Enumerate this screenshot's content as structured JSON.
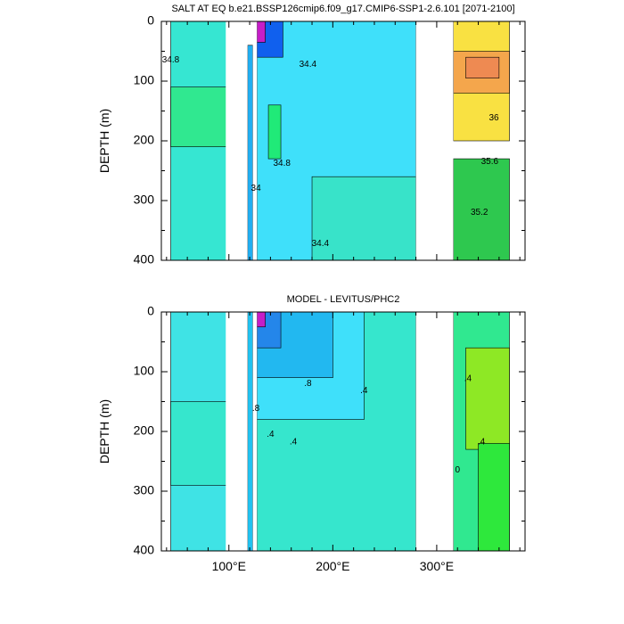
{
  "chart_data": [
    {
      "type": "heatmap",
      "subtype": "filled-contour",
      "title": "SALT AT EQ b.e21.BSSP126cmip6.f09_g17.CMIP6-SSP1-2.6.101 [2071-2100]",
      "ylabel": "DEPTH (m)",
      "xlim": [
        35,
        385
      ],
      "ylim": [
        400,
        0
      ],
      "y_reversed": true,
      "xticks": [
        100,
        200,
        300
      ],
      "xticklabels": [
        "100°E",
        "200°E",
        "300°E"
      ],
      "yticks": [
        0,
        100,
        200,
        300,
        400
      ],
      "yticklabels": [
        "0",
        "100",
        "200",
        "300",
        "400"
      ],
      "land_gaps_lon": [
        [
          97,
          118
        ],
        [
          123,
          127
        ],
        [
          280,
          316
        ]
      ],
      "contour_labels": [
        {
          "text": "34.8",
          "lon": 44,
          "depth": 65
        },
        {
          "text": "34.4",
          "lon": 176,
          "depth": 72
        },
        {
          "text": "34.8",
          "lon": 151,
          "depth": 238
        },
        {
          "text": "34",
          "lon": 126,
          "depth": 280
        },
        {
          "text": "34.4",
          "lon": 188,
          "depth": 372
        },
        {
          "text": "36",
          "lon": 355,
          "depth": 162
        },
        {
          "text": "35.6",
          "lon": 351,
          "depth": 235
        },
        {
          "text": "35.2",
          "lon": 341,
          "depth": 320
        }
      ],
      "regions": [
        {
          "value": 34.6,
          "color": "#36e6d2",
          "lon": [
            44,
            98
          ],
          "depth": [
            0,
            400
          ]
        },
        {
          "value": 34.9,
          "color": "#30e890",
          "lon": [
            44,
            98
          ],
          "depth": [
            110,
            210
          ]
        },
        {
          "value": 34.0,
          "color": "#22aef0",
          "lon": [
            118,
            123
          ],
          "depth": [
            40,
            400
          ]
        },
        {
          "value": 34.2,
          "color": "#3fe0fa",
          "lon": [
            127,
            280
          ],
          "depth": [
            0,
            400
          ]
        },
        {
          "value": 33.6,
          "color": "#1060ee",
          "lon": [
            127,
            152
          ],
          "depth": [
            0,
            60
          ]
        },
        {
          "value": 33.0,
          "color": "#c51ec8",
          "lon": [
            127,
            135
          ],
          "depth": [
            0,
            35
          ]
        },
        {
          "value": 34.8,
          "color": "#20ea78",
          "lon": [
            138,
            150
          ],
          "depth": [
            140,
            230
          ]
        },
        {
          "value": 34.6,
          "color": "#38e3c9",
          "lon": [
            180,
            280
          ],
          "depth": [
            260,
            400
          ]
        },
        {
          "value": 35.4,
          "color": "#2ec84f",
          "lon": [
            316,
            370
          ],
          "depth": [
            230,
            400
          ]
        },
        {
          "value": 35.8,
          "color": "#f9e142",
          "lon": [
            316,
            370
          ],
          "depth": [
            0,
            200
          ]
        },
        {
          "value": 36.2,
          "color": "#f4a64c",
          "lon": [
            316,
            370
          ],
          "depth": [
            50,
            120
          ]
        },
        {
          "value": 36.6,
          "color": "#ee8a52",
          "lon": [
            328,
            360
          ],
          "depth": [
            60,
            95
          ]
        }
      ]
    },
    {
      "type": "heatmap",
      "subtype": "filled-contour",
      "title": "MODEL - LEVITUS/PHC2",
      "ylabel": "DEPTH (m)",
      "xlim": [
        35,
        385
      ],
      "ylim": [
        400,
        0
      ],
      "y_reversed": true,
      "xticks": [
        100,
        200,
        300
      ],
      "xticklabels": [
        "100°E",
        "200°E",
        "300°E"
      ],
      "yticks": [
        0,
        100,
        200,
        300,
        400
      ],
      "yticklabels": [
        "0",
        "100",
        "200",
        "300",
        "400"
      ],
      "land_gaps_lon": [
        [
          97,
          118
        ],
        [
          123,
          127
        ],
        [
          280,
          316
        ]
      ],
      "contour_labels": [
        {
          "text": ".8",
          "lon": 176,
          "depth": 120
        },
        {
          "text": ".4",
          "lon": 230,
          "depth": 132
        },
        {
          "text": ".8",
          "lon": 126,
          "depth": 162
        },
        {
          "text": ".4",
          "lon": 140,
          "depth": 205
        },
        {
          "text": ".4",
          "lon": 162,
          "depth": 218
        },
        {
          "text": ".4",
          "lon": 330,
          "depth": 112
        },
        {
          "text": ".4",
          "lon": 343,
          "depth": 218
        },
        {
          "text": "0",
          "lon": 320,
          "depth": 265
        }
      ],
      "regions": [
        {
          "value": -0.2,
          "color": "#3fe3e5",
          "lon": [
            44,
            98
          ],
          "depth": [
            0,
            400
          ]
        },
        {
          "value": 0.0,
          "color": "#36e6cd",
          "lon": [
            44,
            98
          ],
          "depth": [
            150,
            290
          ]
        },
        {
          "value": -0.4,
          "color": "#22c2f0",
          "lon": [
            118,
            123
          ],
          "depth": [
            0,
            400
          ]
        },
        {
          "value": 0.0,
          "color": "#36e6cd",
          "lon": [
            127,
            280
          ],
          "depth": [
            0,
            400
          ]
        },
        {
          "value": -0.6,
          "color": "#3fe0fa",
          "lon": [
            127,
            230
          ],
          "depth": [
            0,
            180
          ]
        },
        {
          "value": -0.8,
          "color": "#22b8f0",
          "lon": [
            127,
            200
          ],
          "depth": [
            0,
            110
          ]
        },
        {
          "value": -1.2,
          "color": "#2486ea",
          "lon": [
            127,
            150
          ],
          "depth": [
            0,
            60
          ]
        },
        {
          "value": -2.0,
          "color": "#c51ec8",
          "lon": [
            127,
            135
          ],
          "depth": [
            0,
            25
          ]
        },
        {
          "value": 0.2,
          "color": "#30e890",
          "lon": [
            316,
            370
          ],
          "depth": [
            0,
            400
          ]
        },
        {
          "value": 0.4,
          "color": "#8ee825",
          "lon": [
            328,
            370
          ],
          "depth": [
            60,
            230
          ]
        },
        {
          "value": 0.6,
          "color": "#2ee83c",
          "lon": [
            340,
            370
          ],
          "depth": [
            220,
            400
          ]
        }
      ]
    }
  ]
}
